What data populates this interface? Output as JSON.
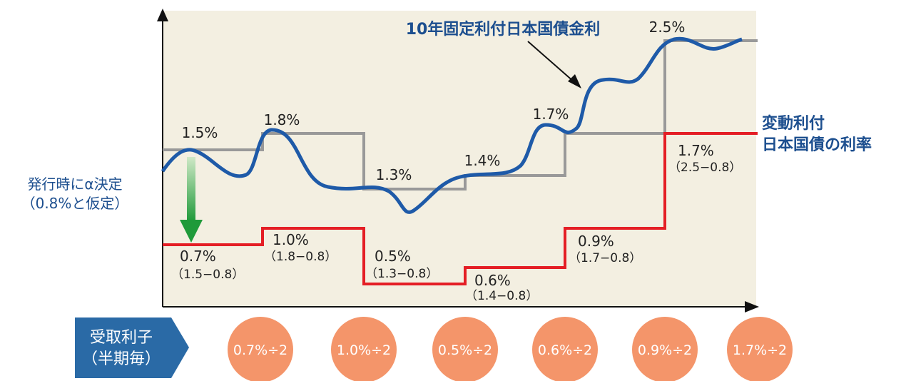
{
  "curve_label": "10年固定利付日本国債金利",
  "fixed_rates": [
    "1.5%",
    "1.8%",
    "1.3%",
    "1.4%",
    "1.7%",
    "2.5%"
  ],
  "floating_rates": [
    {
      "rate": "0.7%",
      "formula": "（1.5−0.8）"
    },
    {
      "rate": "1.0%",
      "formula": "（1.8−0.8）"
    },
    {
      "rate": "0.5%",
      "formula": "（1.3−0.8）"
    },
    {
      "rate": "0.6%",
      "formula": "（1.4−0.8）"
    },
    {
      "rate": "0.9%",
      "formula": "（1.7−0.8）"
    },
    {
      "rate": "1.7%",
      "formula": "（2.5−0.8）"
    }
  ],
  "alpha_note": {
    "line1": "発行時にα決定",
    "line2": "（0.8%と仮定）"
  },
  "floating_label": {
    "line1": "変動利付",
    "line2": "日本国債の利率"
  },
  "receipt_label": {
    "line1": "受取利子",
    "line2": "（半期毎）"
  },
  "coupons": [
    "0.7%÷2",
    "1.0%÷2",
    "0.5%÷2",
    "0.6%÷2",
    "0.9%÷2",
    "1.7%÷2"
  ]
}
